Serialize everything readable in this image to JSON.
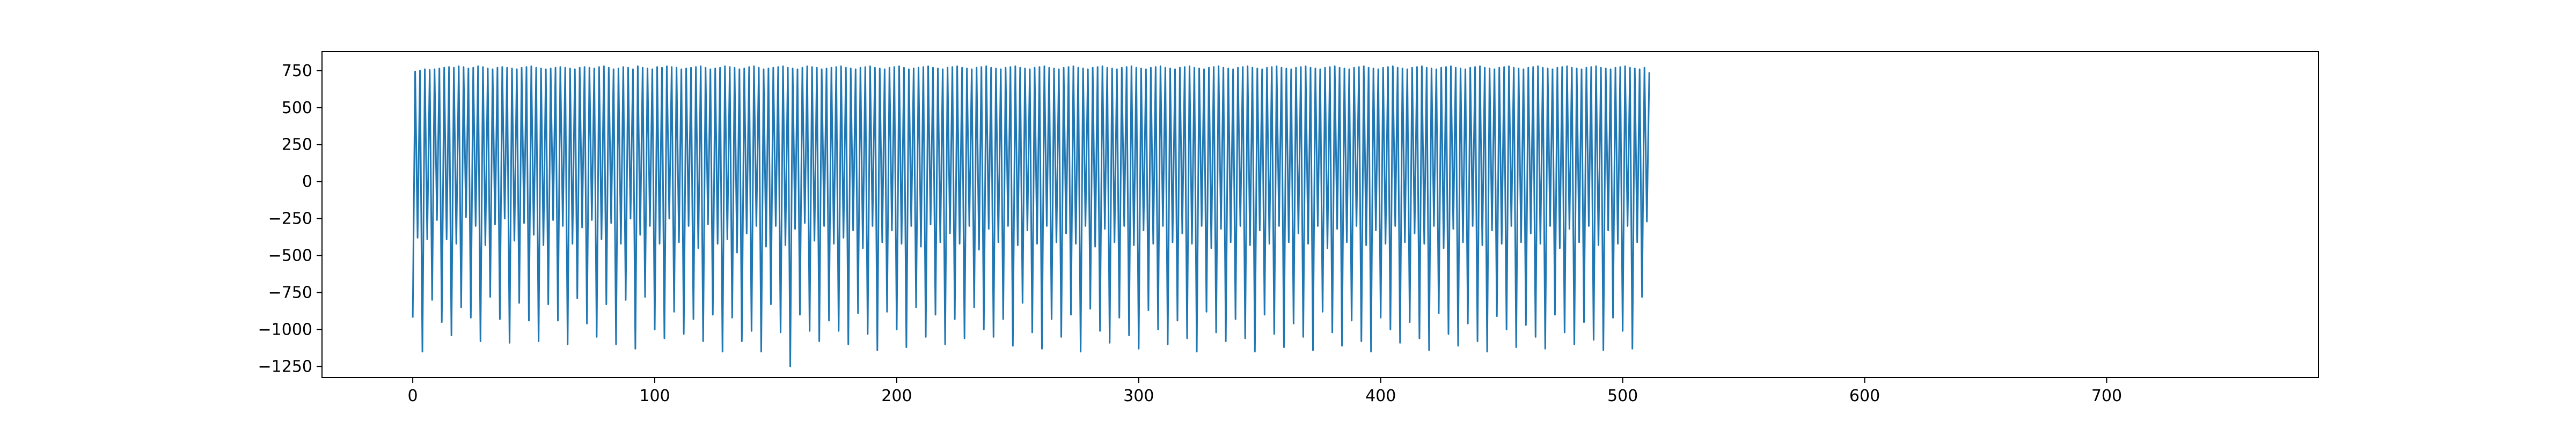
{
  "chart_data": {
    "type": "line",
    "title": "",
    "xlabel": "",
    "ylabel": "",
    "xlim": [
      -37.5,
      787.5
    ],
    "ylim": [
      -1325,
      880
    ],
    "x_ticks": [
      0,
      100,
      200,
      300,
      400,
      500,
      600,
      700
    ],
    "y_ticks": [
      -1250,
      -1000,
      -750,
      -500,
      -250,
      0,
      250,
      500,
      750
    ],
    "x_tick_labels": [
      "0",
      "100",
      "200",
      "300",
      "400",
      "500",
      "600",
      "700"
    ],
    "y_tick_labels": [
      "−1250",
      "−1000",
      "−750",
      "−500",
      "−250",
      "0",
      "250",
      "500",
      "750"
    ],
    "grid": false,
    "legend": "none",
    "series": [
      {
        "color": "#1f77b4",
        "x_start": 0,
        "x_step": 1,
        "period": 3,
        "values": [
          -920,
          745,
          -380,
          750,
          -1150,
          760,
          -390,
          755,
          -800,
          760,
          -260,
          765,
          -950,
          770,
          -390,
          775,
          -1040,
          770,
          -420,
          780,
          -850,
          775,
          -240,
          765,
          -920,
          770,
          -300,
          780,
          -1080,
          775,
          -430,
          765,
          -780,
          760,
          -290,
          770,
          -930,
          775,
          -250,
          770,
          -1090,
          765,
          -400,
          760,
          -820,
          770,
          -280,
          775,
          -940,
          780,
          -360,
          770,
          -1080,
          765,
          -430,
          760,
          -830,
          765,
          -260,
          770,
          -940,
          775,
          -300,
          770,
          -1100,
          765,
          -420,
          760,
          -790,
          770,
          -310,
          775,
          -960,
          770,
          -260,
          765,
          -1050,
          775,
          -390,
          780,
          -830,
          770,
          -280,
          760,
          -1100,
          765,
          -420,
          775,
          -800,
          770,
          -250,
          760,
          -1130,
          780,
          -360,
          770,
          -780,
          765,
          -300,
          760,
          -1000,
          775,
          -420,
          770,
          -1060,
          780,
          -250,
          775,
          -880,
          770,
          -410,
          760,
          -1030,
          765,
          -300,
          770,
          -930,
          775,
          -450,
          780,
          -1080,
          770,
          -290,
          760,
          -900,
          765,
          -420,
          770,
          -1150,
          780,
          -390,
          775,
          -920,
          770,
          -480,
          760,
          -1080,
          765,
          -350,
          775,
          -1010,
          780,
          -300,
          770,
          -1150,
          760,
          -440,
          765,
          -830,
          770,
          -300,
          775,
          -1020,
          780,
          -430,
          770,
          -1250,
          765,
          -320,
          760,
          -900,
          770,
          -280,
          780,
          -1010,
          775,
          -400,
          770,
          -1080,
          760,
          -300,
          765,
          -940,
          770,
          -420,
          775,
          -1010,
          780,
          -380,
          770,
          -1100,
          765,
          -330,
          760,
          -890,
          770,
          -450,
          775,
          -1030,
          780,
          -300,
          770,
          -1140,
          765,
          -410,
          760,
          -880,
          770,
          -330,
          775,
          -1000,
          780,
          -420,
          770,
          -1120,
          760,
          -300,
          765,
          -850,
          770,
          -440,
          775,
          -1050,
          780,
          -290,
          770,
          -900,
          765,
          -410,
          760,
          -1100,
          770,
          -350,
          775,
          -930,
          780,
          -420,
          770,
          -1060,
          765,
          -300,
          760,
          -850,
          770,
          -460,
          775,
          -1000,
          780,
          -320,
          770,
          -1050,
          765,
          -410,
          760,
          -930,
          770,
          -300,
          775,
          -1110,
          780,
          -430,
          770,
          -820,
          765,
          -330,
          760,
          -1020,
          770,
          -420,
          775,
          -1130,
          780,
          -300,
          770,
          -930,
          765,
          -410,
          760,
          -1050,
          770,
          -350,
          775,
          -900,
          780,
          -420,
          770,
          -1150,
          765,
          -300,
          760,
          -860,
          770,
          -440,
          775,
          -1010,
          780,
          -320,
          770,
          -1090,
          765,
          -410,
          760,
          -920,
          770,
          -300,
          775,
          -1040,
          780,
          -430,
          770,
          -1130,
          765,
          -330,
          760,
          -870,
          770,
          -420,
          775,
          -1000,
          780,
          -300,
          770,
          -1100,
          765,
          -410,
          760,
          -940,
          770,
          -350,
          775,
          -1060,
          780,
          -420,
          770,
          -1150,
          765,
          -300,
          760,
          -880,
          770,
          -450,
          775,
          -1020,
          780,
          -320,
          770,
          -1080,
          765,
          -410,
          760,
          -930,
          770,
          -300,
          775,
          -1060,
          780,
          -430,
          770,
          -1150,
          765,
          -330,
          760,
          -900,
          770,
          -420,
          775,
          -1030,
          780,
          -300,
          770,
          -1120,
          765,
          -410,
          760,
          -960,
          770,
          -350,
          775,
          -1050,
          780,
          -420,
          770,
          -1140,
          765,
          -300,
          760,
          -880,
          770,
          -450,
          775,
          -1020,
          780,
          -320,
          770,
          -1110,
          765,
          -410,
          760,
          -940,
          770,
          -300,
          775,
          -1080,
          780,
          -430,
          770,
          -1150,
          765,
          -330,
          760,
          -920,
          770,
          -420,
          775,
          -1000,
          780,
          -300,
          770,
          -1090,
          765,
          -410,
          760,
          -950,
          770,
          -350,
          775,
          -1060,
          780,
          -420,
          770,
          -1140,
          765,
          -300,
          760,
          -890,
          770,
          -450,
          775,
          -1030,
          780,
          -320,
          770,
          -1110,
          765,
          -410,
          760,
          -960,
          770,
          -300,
          775,
          -1080,
          780,
          -430,
          770,
          -1150,
          765,
          -330,
          760,
          -910,
          770,
          -420,
          775,
          -1000,
          780,
          -300,
          770,
          -1120,
          765,
          -410,
          760,
          -970,
          770,
          -350,
          775,
          -1050,
          780,
          -420,
          770,
          -1130,
          765,
          -300,
          760,
          -900,
          770,
          -450,
          775,
          -1020,
          780,
          -320,
          770,
          -1100,
          765,
          -410,
          760,
          -950,
          770,
          -300,
          775,
          -1070,
          780,
          -430,
          770,
          -1140,
          765,
          -330,
          760,
          -920,
          770,
          -420,
          775,
          -1010,
          780,
          -300,
          770,
          -1130,
          765,
          -410,
          760,
          -780,
          770,
          -270,
          740
        ]
      }
    ]
  }
}
